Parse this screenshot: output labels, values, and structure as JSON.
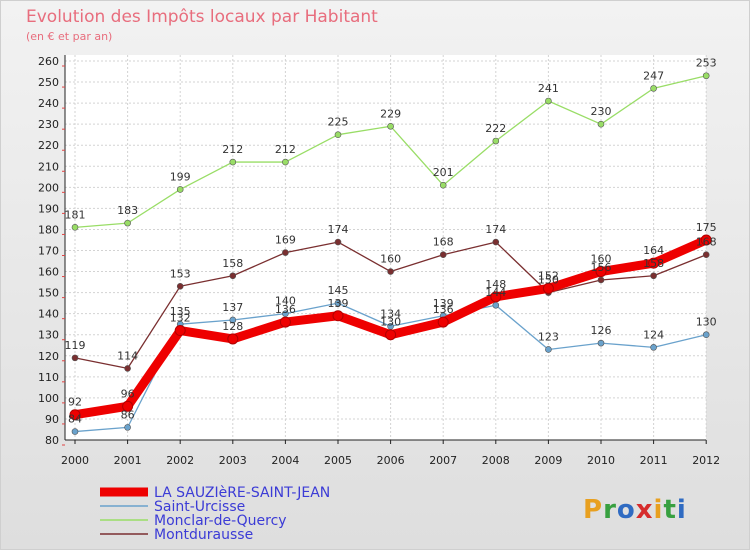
{
  "chart_data": {
    "type": "line",
    "title": "Evolution des Impôts locaux par Habitant",
    "subtitle": "(en € et par an)",
    "x": [
      "2000",
      "2001",
      "2002",
      "2003",
      "2004",
      "2005",
      "2006",
      "2007",
      "2008",
      "2009",
      "2010",
      "2011",
      "2012"
    ],
    "ylim": [
      80,
      260
    ],
    "yticks": [
      80,
      90,
      100,
      110,
      120,
      130,
      140,
      150,
      160,
      170,
      180,
      190,
      200,
      210,
      220,
      230,
      240,
      250,
      260
    ],
    "grid": true,
    "legend_position": "bottom-left",
    "series": [
      {
        "name": "LA SAUZIèRE-SAINT-JEAN",
        "color": "#ee0000",
        "values": [
          92,
          96,
          132,
          128,
          136,
          139,
          130,
          136,
          148,
          152,
          160,
          164,
          175
        ],
        "labels": [
          "92",
          "96",
          "132",
          "128",
          "136",
          "139",
          "130",
          "136",
          "148",
          "152",
          "160",
          "164",
          "175"
        ]
      },
      {
        "name": "Saint-Urcisse",
        "color": "#6aa2cc",
        "values": [
          84,
          86,
          135,
          137,
          140,
          145,
          134,
          139,
          144,
          123,
          126,
          124,
          130
        ],
        "labels": [
          "84",
          "86",
          "135",
          "137",
          "140",
          "145",
          "134",
          "139",
          "144",
          "123",
          "126",
          "124",
          "130"
        ]
      },
      {
        "name": "Monclar-de-Quercy",
        "color": "#99dd66",
        "values": [
          181,
          183,
          199,
          212,
          212,
          225,
          229,
          201,
          222,
          241,
          230,
          247,
          253
        ],
        "labels": [
          "181",
          "183",
          "199",
          "212",
          "212",
          "225",
          "229",
          "201",
          "222",
          "241",
          "230",
          "247",
          "253"
        ]
      },
      {
        "name": "Montdurausse",
        "color": "#7a2f30",
        "values": [
          119,
          114,
          153,
          158,
          169,
          174,
          160,
          168,
          174,
          150,
          156,
          158,
          168
        ],
        "labels": [
          "119",
          "114",
          "153",
          "158",
          "169",
          "174",
          "160",
          "168",
          "174",
          "150",
          "156",
          "158",
          "168"
        ]
      }
    ]
  },
  "logo": {
    "text": "Proxiti",
    "colors": [
      "#e8a020",
      "#38a040",
      "#2f6bc2",
      "#d62c2c",
      "#e8a020",
      "#38a040",
      "#2f6bc2"
    ]
  }
}
